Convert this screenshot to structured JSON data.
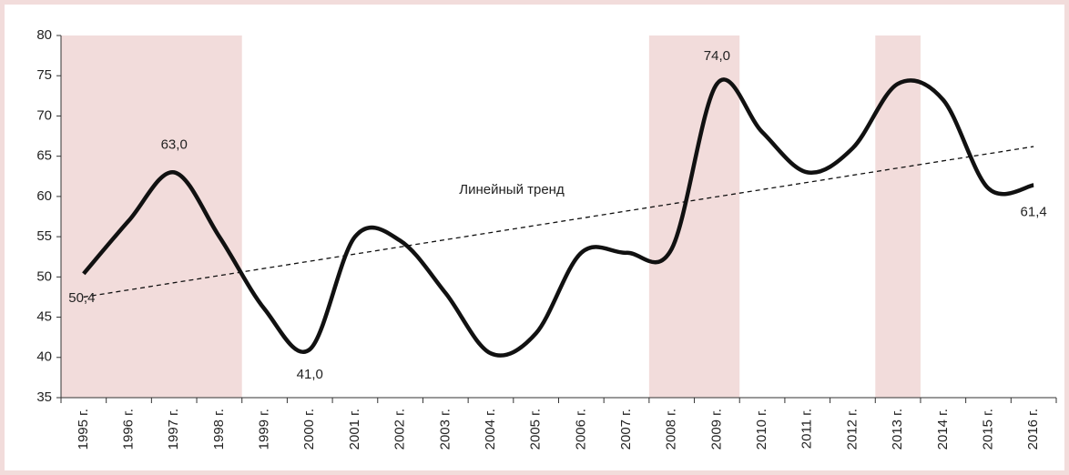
{
  "chart_data": {
    "type": "line",
    "categories": [
      "1995 г.",
      "1996 г.",
      "1997 г.",
      "1998 г.",
      "1999 г.",
      "2000 г.",
      "2001 г.",
      "2002 г.",
      "2003 г.",
      "2004 г.",
      "2005 г.",
      "2006 г.",
      "2007 г.",
      "2008 г.",
      "2009 г.",
      "2010 г.",
      "2011 г.",
      "2012 г.",
      "2013 г.",
      "2014 г.",
      "2015 г.",
      "2016 г."
    ],
    "values": [
      50.4,
      57,
      63.0,
      55,
      46,
      41.0,
      55,
      54.5,
      48,
      40.5,
      43,
      53,
      53,
      53.5,
      74.0,
      68,
      63,
      66,
      74,
      72,
      61,
      61.4
    ],
    "value_labels": [
      "50,4",
      null,
      "63,0",
      null,
      null,
      "41,0",
      null,
      null,
      null,
      null,
      null,
      null,
      null,
      null,
      "74,0",
      null,
      null,
      null,
      null,
      null,
      null,
      "61,4"
    ],
    "color": "#111111",
    "ylim": [
      35,
      80
    ],
    "yticks": [
      35,
      40,
      45,
      50,
      55,
      60,
      65,
      70,
      75,
      80
    ],
    "shaded": [
      [
        "1995 г.",
        "1998 г."
      ],
      [
        "2008 г.",
        "2009 г."
      ],
      [
        "2013 г.",
        "2013 г."
      ]
    ],
    "shade_color": "#f2dcdb",
    "trend": {
      "label": "Линейный тренд",
      "start": 47.5,
      "end": 66.2
    }
  }
}
